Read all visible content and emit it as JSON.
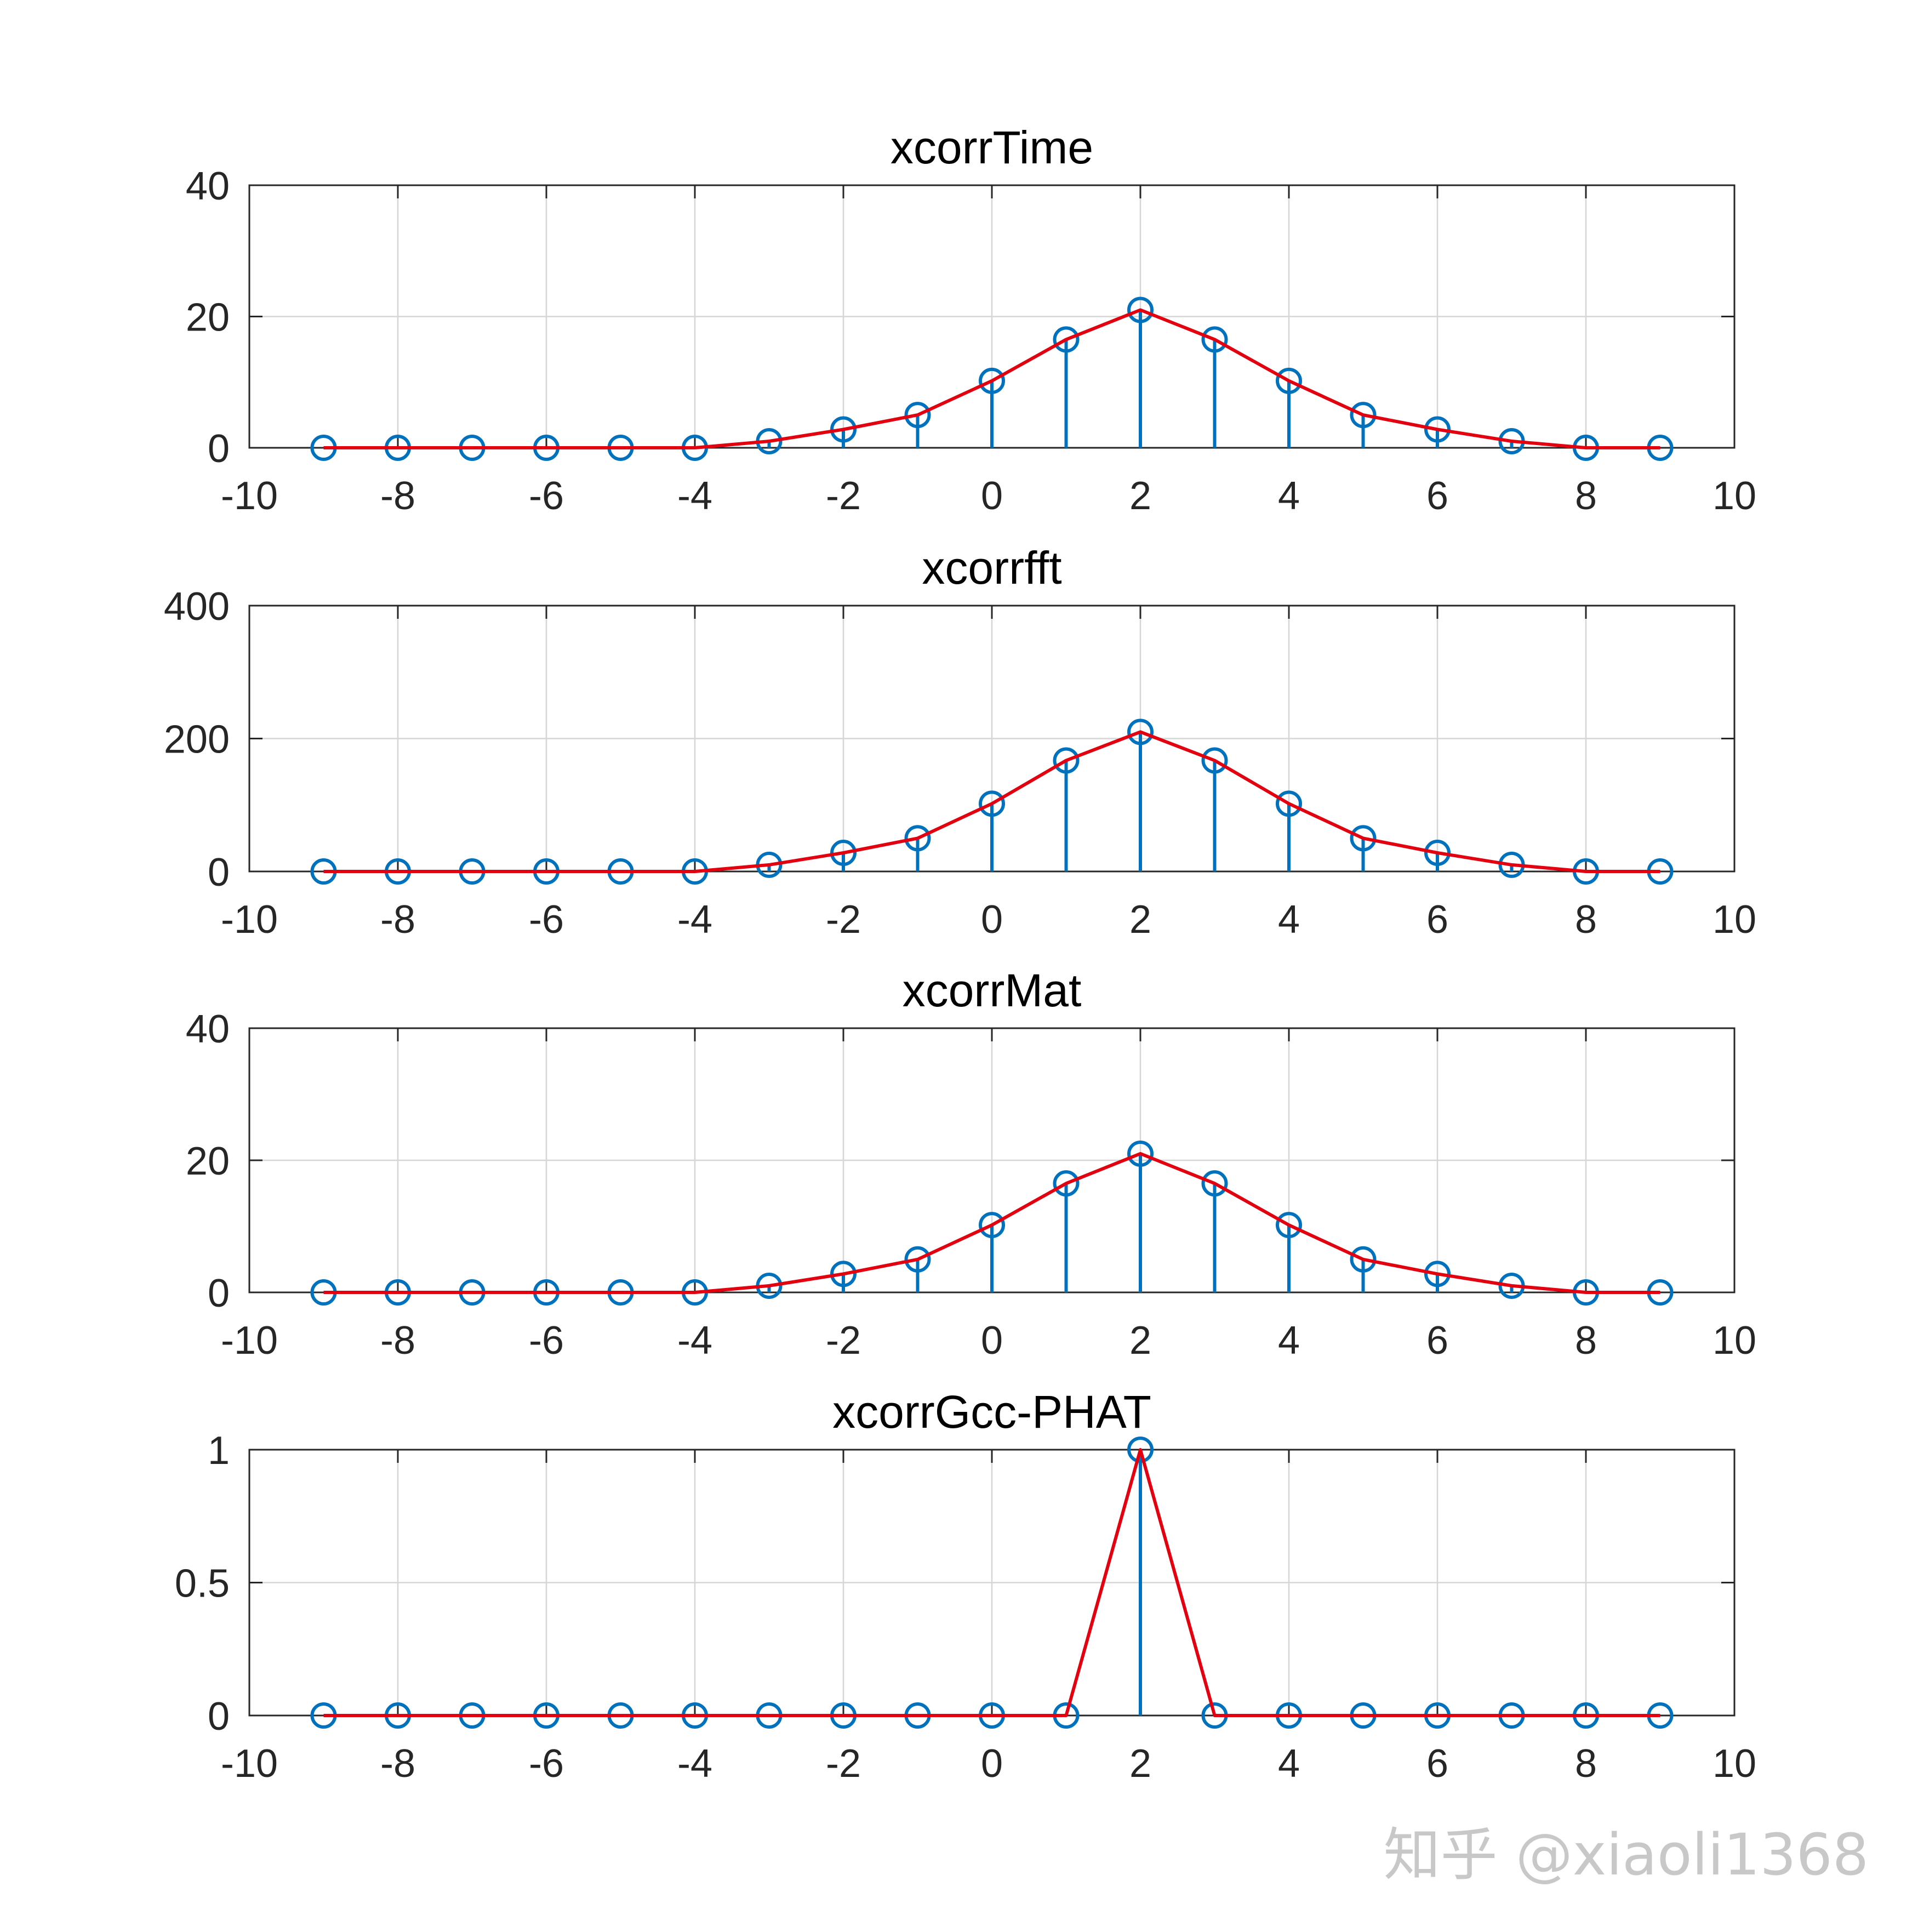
{
  "watermark": "知乎 @xiaoli1368",
  "colors": {
    "stem": "#0072BD",
    "line": "#E3000F",
    "frame": "#262626",
    "grid": "#d6d6d6"
  },
  "chart_data": [
    {
      "type": "stem+line",
      "title": "xcorrTime",
      "xlim": [
        -10,
        10
      ],
      "ylim": [
        0,
        40
      ],
      "xticks": [
        -10,
        -8,
        -6,
        -4,
        -2,
        0,
        2,
        4,
        6,
        8,
        10
      ],
      "yticks": [
        0,
        20,
        40
      ],
      "grid": true,
      "x": [
        -9,
        -8,
        -7,
        -6,
        -5,
        -4,
        -3,
        -2,
        -1,
        0,
        1,
        2,
        3,
        4,
        5,
        6,
        7,
        8,
        9
      ],
      "series": [
        {
          "style": "stem",
          "values": [
            0,
            0,
            0,
            0,
            0,
            0,
            1,
            2.8,
            5,
            10.2,
            16.5,
            21,
            16.5,
            10.2,
            5,
            2.8,
            1,
            0,
            0
          ]
        },
        {
          "style": "line",
          "values": [
            0,
            0,
            0,
            0,
            0,
            0,
            1,
            2.8,
            5,
            10.2,
            16.5,
            21,
            16.5,
            10.2,
            5,
            2.8,
            1,
            0,
            0
          ]
        }
      ]
    },
    {
      "type": "stem+line",
      "title": "xcorrfft",
      "xlim": [
        -10,
        10
      ],
      "ylim": [
        0,
        400
      ],
      "xticks": [
        -10,
        -8,
        -6,
        -4,
        -2,
        0,
        2,
        4,
        6,
        8,
        10
      ],
      "yticks": [
        0,
        200,
        400
      ],
      "grid": true,
      "x": [
        -9,
        -8,
        -7,
        -6,
        -5,
        -4,
        -3,
        -2,
        -1,
        0,
        1,
        2,
        3,
        4,
        5,
        6,
        7,
        8,
        9
      ],
      "series": [
        {
          "style": "stem",
          "values": [
            0,
            0,
            0,
            0,
            0,
            0,
            10,
            28,
            50,
            102,
            167,
            210,
            167,
            102,
            50,
            28,
            10,
            0,
            0
          ]
        },
        {
          "style": "line",
          "values": [
            0,
            0,
            0,
            0,
            0,
            0,
            10,
            28,
            50,
            102,
            167,
            210,
            167,
            102,
            50,
            28,
            10,
            0,
            0
          ]
        }
      ]
    },
    {
      "type": "stem+line",
      "title": "xcorrMat",
      "xlim": [
        -10,
        10
      ],
      "ylim": [
        0,
        40
      ],
      "xticks": [
        -10,
        -8,
        -6,
        -4,
        -2,
        0,
        2,
        4,
        6,
        8,
        10
      ],
      "yticks": [
        0,
        20,
        40
      ],
      "grid": true,
      "x": [
        -9,
        -8,
        -7,
        -6,
        -5,
        -4,
        -3,
        -2,
        -1,
        0,
        1,
        2,
        3,
        4,
        5,
        6,
        7,
        8,
        9
      ],
      "series": [
        {
          "style": "stem",
          "values": [
            0,
            0,
            0,
            0,
            0,
            0,
            1,
            2.8,
            5,
            10.2,
            16.5,
            21,
            16.5,
            10.2,
            5,
            2.8,
            1,
            0,
            0
          ]
        },
        {
          "style": "line",
          "values": [
            0,
            0,
            0,
            0,
            0,
            0,
            1,
            2.8,
            5,
            10.2,
            16.5,
            21,
            16.5,
            10.2,
            5,
            2.8,
            1,
            0,
            0
          ]
        }
      ]
    },
    {
      "type": "stem+line",
      "title": "xcorrGcc-PHAT",
      "xlim": [
        -10,
        10
      ],
      "ylim": [
        0,
        1
      ],
      "xticks": [
        -10,
        -8,
        -6,
        -4,
        -2,
        0,
        2,
        4,
        6,
        8,
        10
      ],
      "yticks": [
        0,
        0.5,
        1
      ],
      "grid": true,
      "x": [
        -9,
        -8,
        -7,
        -6,
        -5,
        -4,
        -3,
        -2,
        -1,
        0,
        1,
        2,
        3,
        4,
        5,
        6,
        7,
        8,
        9
      ],
      "series": [
        {
          "style": "stem",
          "values": [
            0,
            0,
            0,
            0,
            0,
            0,
            0,
            0,
            0,
            0,
            0,
            1,
            0,
            0,
            0,
            0,
            0,
            0,
            0
          ]
        },
        {
          "style": "line",
          "values": [
            0,
            0,
            0,
            0,
            0,
            0,
            0,
            0,
            0,
            0,
            0,
            1,
            0,
            0,
            0,
            0,
            0,
            0,
            0
          ]
        }
      ]
    }
  ]
}
